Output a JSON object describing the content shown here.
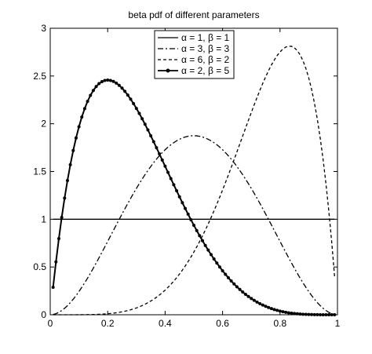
{
  "chart_data": {
    "type": "line",
    "title": "beta pdf of different parameters",
    "xlabel": "",
    "ylabel": "",
    "xlim": [
      0,
      1
    ],
    "ylim": [
      0,
      3
    ],
    "grid": false,
    "legend_position": "top-center",
    "x_ticks": [
      "0",
      "0.2",
      "0.4",
      "0.6",
      "0.8",
      "1"
    ],
    "y_ticks": [
      "0",
      "0.5",
      "1",
      "1.5",
      "2",
      "2.5",
      "3"
    ],
    "series": [
      {
        "name": "α = 1, β = 1",
        "alpha": 1,
        "beta": 1,
        "line_style": "solid",
        "markers": false,
        "x": [
          0.01,
          0.2,
          0.4,
          0.6,
          0.8,
          0.99
        ],
        "y": [
          1,
          1,
          1,
          1,
          1,
          1
        ]
      },
      {
        "name": "α = 3, β = 3",
        "alpha": 3,
        "beta": 3,
        "line_style": "dash-dot",
        "markers": false,
        "x": [
          0,
          0.1,
          0.2,
          0.3,
          0.4,
          0.5,
          0.6,
          0.7,
          0.8,
          0.9,
          1
        ],
        "y": [
          0,
          0.24,
          0.77,
          1.32,
          1.73,
          1.88,
          1.73,
          1.32,
          0.77,
          0.24,
          0
        ]
      },
      {
        "name": "α = 6, β = 2",
        "alpha": 6,
        "beta": 2,
        "line_style": "dashed",
        "markers": false,
        "x": [
          0,
          0.2,
          0.4,
          0.5,
          0.6,
          0.7,
          0.8,
          0.83,
          0.9,
          0.95,
          0.99
        ],
        "y": [
          0,
          0.01,
          0.22,
          0.66,
          1.31,
          2.02,
          2.75,
          2.8,
          2.55,
          1.63,
          0.41
        ]
      },
      {
        "name": "α = 2, β = 5",
        "alpha": 2,
        "beta": 5,
        "line_style": "solid",
        "markers": true,
        "x": [
          0.01,
          0.05,
          0.1,
          0.15,
          0.2,
          0.25,
          0.3,
          0.4,
          0.5,
          0.6,
          0.7,
          0.8,
          0.9,
          0.99
        ],
        "y": [
          0.29,
          1.22,
          1.97,
          2.35,
          2.46,
          2.37,
          2.16,
          1.56,
          0.94,
          0.46,
          0.15,
          0.03,
          0.01,
          0
        ]
      }
    ]
  }
}
